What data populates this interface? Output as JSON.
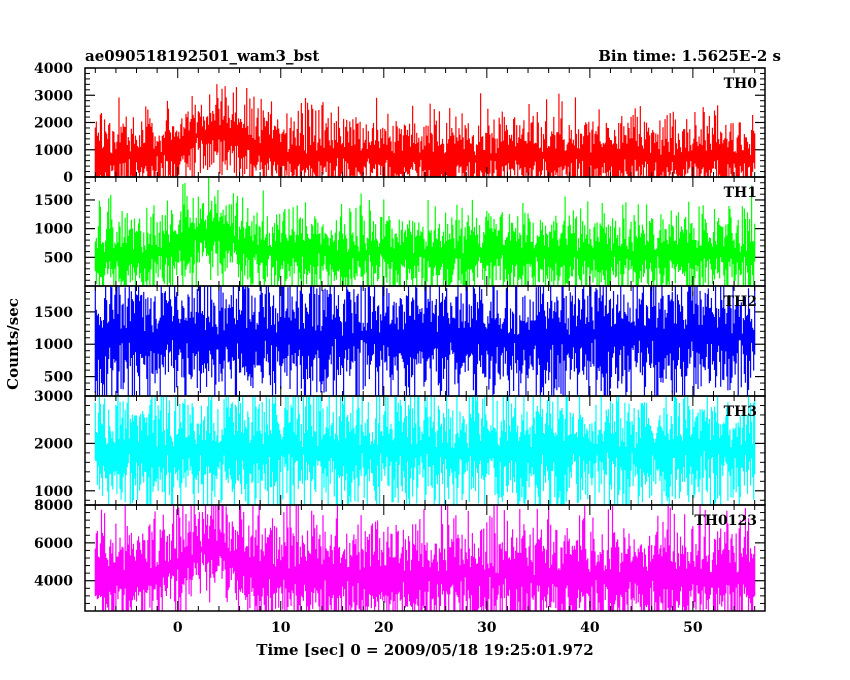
{
  "header": {
    "title": "ae090518192501_wam3_bst",
    "bin_time": "Bin time: 1.5625E-2 s"
  },
  "axes": {
    "xlabel": "Time [sec] 0 = 2009/05/18 19:25:01.972",
    "ylabel": "Counts/sec"
  },
  "chart_data": {
    "type": "line",
    "title": "ae090518192501_wam3_bst",
    "xlabel": "Time [sec] 0 = 2009/05/18 19:25:01.972",
    "ylabel": "Counts/sec",
    "xlim": [
      -9,
      57
    ],
    "x_ticks": [
      0,
      10,
      20,
      30,
      40,
      50
    ],
    "x_tick_labels": [
      "0",
      "10",
      "20",
      "30",
      "40",
      "50"
    ],
    "data_range": [
      -8,
      56
    ],
    "series": [
      {
        "name": "TH0",
        "color": "#ff0000",
        "ylim": [
          0,
          4000
        ],
        "y_ticks": [
          0,
          1000,
          2000,
          3000,
          4000
        ],
        "y_tick_labels": [
          "0",
          "1000",
          "2000",
          "3000",
          "4000"
        ],
        "x": [
          -8,
          -6,
          -4,
          -2,
          0,
          1,
          2,
          3,
          4,
          5,
          6,
          7,
          8,
          10,
          12,
          15,
          20,
          25,
          30,
          35,
          40,
          45,
          50,
          56
        ],
        "y": [
          700,
          720,
          760,
          800,
          1000,
          1250,
          1550,
          1700,
          1700,
          1550,
          1350,
          1150,
          1000,
          880,
          820,
          780,
          760,
          750,
          740,
          740,
          730,
          730,
          720,
          720
        ]
      },
      {
        "name": "TH1",
        "color": "#00ff00",
        "ylim": [
          0,
          1900
        ],
        "y_ticks": [
          500,
          1000,
          1500
        ],
        "y_tick_labels": [
          "500",
          "1000",
          "1500"
        ],
        "x": [
          -8,
          -4,
          -2,
          0,
          1,
          2,
          3,
          4,
          5,
          6,
          8,
          10,
          15,
          20,
          30,
          40,
          50,
          56
        ],
        "y": [
          550,
          560,
          580,
          700,
          800,
          900,
          950,
          950,
          880,
          760,
          650,
          600,
          580,
          570,
          560,
          560,
          560,
          560
        ]
      },
      {
        "name": "TH2",
        "color": "#0000ff",
        "ylim": [
          200,
          1900
        ],
        "y_ticks": [
          500,
          1000,
          1500
        ],
        "y_tick_labels": [
          "500",
          "1000",
          "1500"
        ],
        "x": [
          -8,
          0,
          10,
          20,
          30,
          40,
          50,
          56
        ],
        "y": [
          1100,
          1100,
          1100,
          1100,
          1100,
          1100,
          1100,
          1100
        ]
      },
      {
        "name": "TH3",
        "color": "#00ffff",
        "ylim": [
          700,
          3000
        ],
        "y_ticks": [
          1000,
          2000,
          3000
        ],
        "y_tick_labels": [
          "1000",
          "2000",
          "3000"
        ],
        "x": [
          -8,
          0,
          10,
          20,
          30,
          40,
          50,
          56
        ],
        "y": [
          1850,
          1850,
          1850,
          1850,
          1850,
          1850,
          1850,
          1850
        ]
      },
      {
        "name": "TH0123",
        "color": "#ff00ff",
        "ylim": [
          2400,
          8000
        ],
        "y_ticks": [
          4000,
          6000,
          8000
        ],
        "y_tick_labels": [
          "4000",
          "6000",
          "8000"
        ],
        "x": [
          -8,
          -4,
          -2,
          0,
          1,
          2,
          3,
          4,
          5,
          6,
          8,
          10,
          15,
          20,
          30,
          40,
          50,
          56
        ],
        "y": [
          4200,
          4250,
          4350,
          4800,
          5200,
          5600,
          5800,
          5700,
          5400,
          5000,
          4600,
          4400,
          4300,
          4300,
          4250,
          4250,
          4200,
          4200
        ]
      }
    ]
  }
}
